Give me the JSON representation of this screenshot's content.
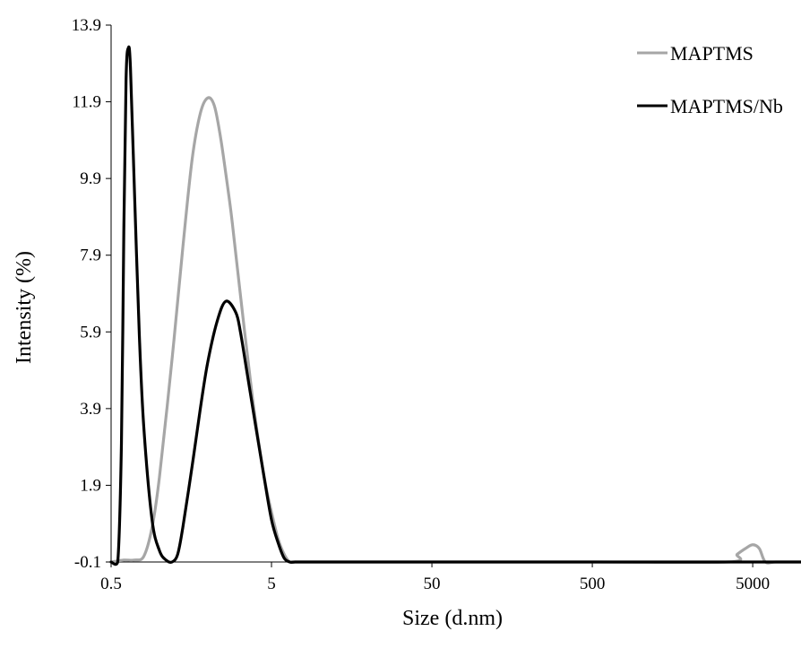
{
  "chart_data": {
    "type": "line",
    "xlabel": "Size (d.nm)",
    "ylabel": "Intensity  (%)",
    "x_scale": "log",
    "xlim": [
      0.5,
      10000
    ],
    "ylim": [
      -0.1,
      13.9
    ],
    "x_ticks": [
      0.5,
      5,
      50,
      500,
      5000
    ],
    "x_tick_labels": [
      "0.5",
      "5",
      "50",
      "500",
      "5000"
    ],
    "y_ticks": [
      -0.1,
      1.9,
      3.9,
      5.9,
      7.9,
      9.9,
      11.9,
      13.9
    ],
    "y_tick_labels": [
      "-0.1",
      "1.9",
      "3.9",
      "5.9",
      "7.9",
      "9.9",
      "11.9",
      "13.9"
    ],
    "grid": false,
    "legend_position": "top-right",
    "series": [
      {
        "name": "MAPTMS",
        "color": "#a6a6a6",
        "x": [
          0.5,
          0.6,
          0.7,
          0.8,
          0.9,
          1.0,
          1.2,
          1.4,
          1.6,
          1.8,
          2.0,
          2.2,
          2.4,
          2.6,
          2.8,
          3.0,
          3.4,
          3.8,
          4.2,
          4.6,
          5.0,
          5.5,
          6.0,
          6.5,
          7.0,
          7.5,
          8.0,
          9.0,
          10,
          50,
          500,
          3500,
          4000,
          4500,
          5000,
          5500,
          6000,
          7000,
          10000
        ],
        "y": [
          -0.1,
          -0.05,
          -0.05,
          0.05,
          0.8,
          2.1,
          5.2,
          8.1,
          10.4,
          11.6,
          12.0,
          11.8,
          11.0,
          10.0,
          9.0,
          7.9,
          5.9,
          4.2,
          2.9,
          1.9,
          1.2,
          0.5,
          0.1,
          -0.1,
          -0.1,
          -0.1,
          -0.1,
          -0.1,
          -0.1,
          -0.1,
          -0.1,
          -0.1,
          0.1,
          0.25,
          0.35,
          0.25,
          -0.1,
          -0.1,
          -0.1
        ]
      },
      {
        "name": "MAPTMS/Nb",
        "color": "#000000",
        "x": [
          0.5,
          0.55,
          0.58,
          0.6,
          0.62,
          0.64,
          0.66,
          0.7,
          0.75,
          0.8,
          0.9,
          1.0,
          1.1,
          1.2,
          1.3,
          1.4,
          1.6,
          1.8,
          2.0,
          2.3,
          2.6,
          3.0,
          3.2,
          3.5,
          4.0,
          4.5,
          5.0,
          5.5,
          6.0,
          6.5,
          7.0,
          10,
          50,
          500,
          5000,
          10000
        ],
        "y": [
          -0.1,
          -0.1,
          3.0,
          8.5,
          12.5,
          13.3,
          12.8,
          9.5,
          5.8,
          3.4,
          1.0,
          0.2,
          -0.05,
          -0.1,
          0.1,
          0.8,
          2.4,
          3.9,
          5.1,
          6.2,
          6.7,
          6.4,
          5.9,
          4.9,
          3.4,
          2.1,
          1.0,
          0.4,
          0.0,
          -0.1,
          -0.1,
          -0.1,
          -0.1,
          -0.1,
          -0.1,
          -0.1
        ]
      }
    ]
  }
}
